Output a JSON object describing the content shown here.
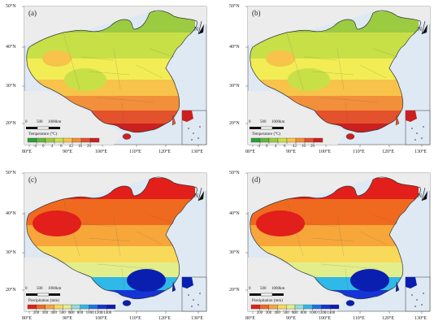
{
  "longitude_labels": [
    "80°E",
    "90°E",
    "100°E",
    "110°E",
    "120°E",
    "130°E"
  ],
  "latitude_labels": [
    "50°N",
    "40°N",
    "30°N",
    "20°N"
  ],
  "north_arrow": "N",
  "scale_bar": {
    "ticks": [
      "0",
      "500",
      "1000km"
    ]
  },
  "colors": {
    "sea": "#dfe9f4",
    "land_outside": "#ececec",
    "temp": [
      "#2e9d3a",
      "#62b63c",
      "#9bcb41",
      "#c8e047",
      "#f2ec55",
      "#f7c34a",
      "#f28f3a",
      "#e4512d",
      "#cc1f1f"
    ],
    "precip": [
      "#e21f1a",
      "#ef6a1f",
      "#f7a63a",
      "#f9d95a",
      "#e2ee8b",
      "#8fe0d8",
      "#2fb8e8",
      "#1d72e6",
      "#1534d6",
      "#0a1fb0"
    ]
  },
  "panels": [
    {
      "id": "a",
      "label": "(a)",
      "variable": "temperature",
      "colorbar": {
        "title": "Temperature (°C)",
        "ticks": [
          "-4",
          "0",
          "4",
          "6",
          "12",
          "16",
          "20"
        ]
      }
    },
    {
      "id": "b",
      "label": "(b)",
      "variable": "temperature",
      "colorbar": {
        "title": "Temperature (°C)",
        "ticks": [
          "-4",
          "0",
          "4",
          "6",
          "12",
          "16",
          "20"
        ]
      }
    },
    {
      "id": "c",
      "label": "(c)",
      "variable": "precipitation",
      "colorbar": {
        "title": "Precipitation (mm)",
        "ticks": [
          "200",
          "300",
          "400",
          "500",
          "600",
          "800",
          "1000",
          "1200",
          "1400"
        ]
      }
    },
    {
      "id": "d",
      "label": "(d)",
      "variable": "precipitation",
      "colorbar": {
        "title": "Precipitation (mm)",
        "ticks": [
          "200",
          "300",
          "400",
          "500",
          "600",
          "800",
          "1000",
          "1200",
          "1400"
        ]
      }
    }
  ]
}
